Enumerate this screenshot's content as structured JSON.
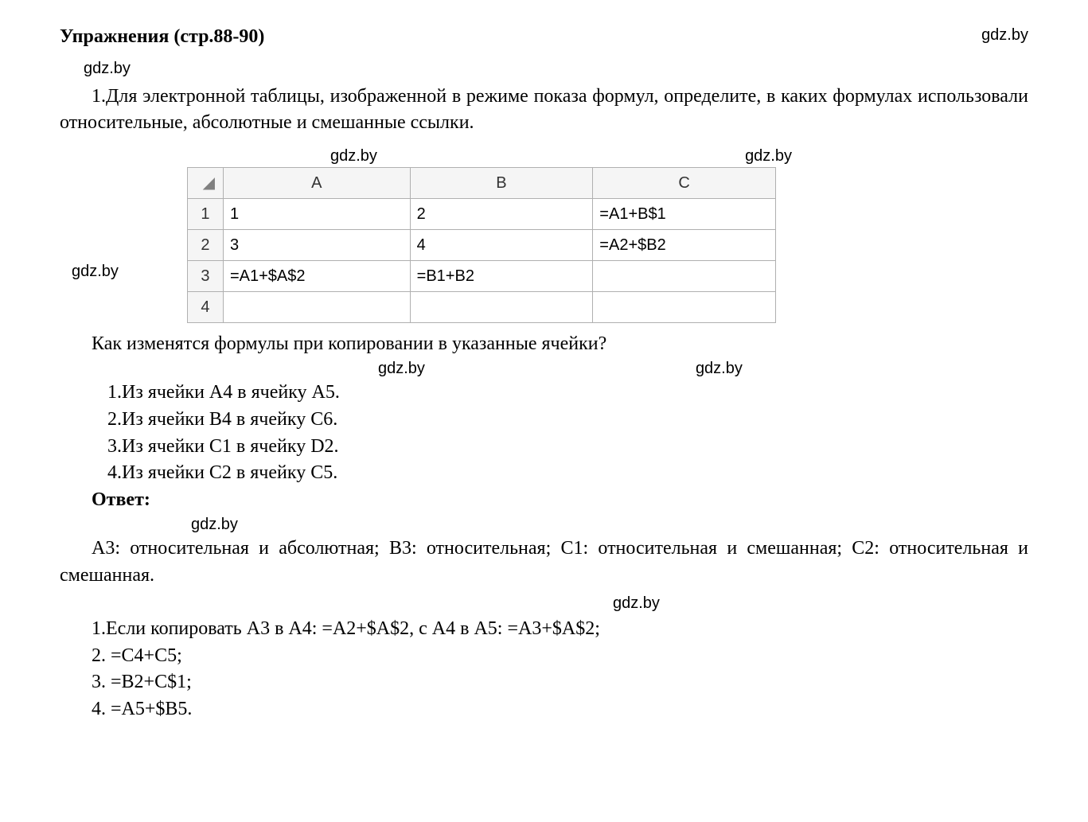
{
  "title": "Упражнения (стр.88-90)",
  "watermark": "gdz.by",
  "intro_text": "1.Для электронной таблицы, изображенной в режиме показа формул, определите, в каких формулах использовали относительные, абсолютные и смешанные ссылки.",
  "spreadsheet": {
    "corner_symbol": "◢",
    "columns": [
      "A",
      "B",
      "C"
    ],
    "rows": [
      {
        "num": "1",
        "cells": [
          "1",
          "2",
          "=A1+B$1"
        ]
      },
      {
        "num": "2",
        "cells": [
          "3",
          "4",
          "=A2+$B2"
        ]
      },
      {
        "num": "3",
        "cells": [
          "=A1+$A$2",
          "=B1+B2",
          ""
        ]
      },
      {
        "num": "4",
        "cells": [
          "",
          "",
          ""
        ]
      }
    ]
  },
  "question": "Как изменятся формулы при копировании в указанные ячейки?",
  "list_items": [
    "1.Из ячейки A4 в ячейку A5.",
    "2.Из ячейки B4 в ячейку C6.",
    "3.Из ячейки C1 в ячейку D2.",
    "4.Из ячейки C2 в ячейку C5."
  ],
  "answer_title": "Ответ:",
  "answer_p1": "A3: относительная и абсолютная; B3: относительная; C1: относительная и смешанная; C2: относительная и смешанная.",
  "answer_list": [
    "1.Если копировать A3 в A4: =A2+$A$2, с A4 в A5: =A3+$A$2;",
    "2. =C4+C5;",
    "3. =B2+C$1;",
    "4. =A5+$B5."
  ]
}
